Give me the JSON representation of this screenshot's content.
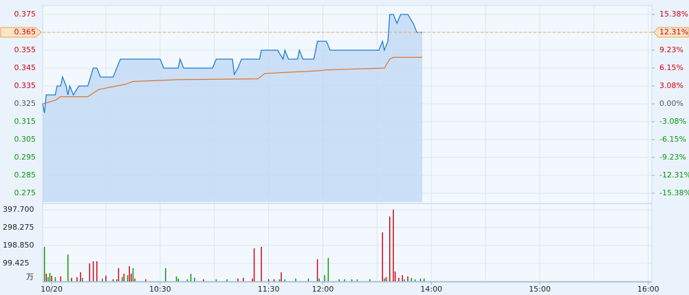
{
  "chart_data": {
    "type": "stock",
    "xlim": [
      -5,
      332
    ],
    "xticks": [
      {
        "value": 0,
        "label": "10/20"
      },
      {
        "value": 60,
        "label": "10:30"
      },
      {
        "value": 120,
        "label": "11:30"
      },
      {
        "value": 150,
        "label": "12:00"
      },
      {
        "value": 210,
        "label": "14:00"
      },
      {
        "value": 270,
        "label": "15:00"
      },
      {
        "value": 330,
        "label": "16:00"
      }
    ],
    "xgrid": [
      30,
      60,
      90,
      120,
      150,
      180,
      210,
      240,
      270,
      300,
      330
    ],
    "ylim": [
      0.27,
      0.38
    ],
    "yticks": [
      0.375,
      0.365,
      0.355,
      0.345,
      0.335,
      0.325,
      0.315,
      0.305,
      0.295,
      0.285,
      0.275
    ],
    "y2lim": [
      -16.92,
      16.92
    ],
    "y2ticks": [
      {
        "value": 15.38,
        "label": "15.38%"
      },
      {
        "value": 12.31,
        "label": "12.31%"
      },
      {
        "value": 9.23,
        "label": "9.23%"
      },
      {
        "value": 6.15,
        "label": "6.15%"
      },
      {
        "value": 3.08,
        "label": "3.08%"
      },
      {
        "value": 0,
        "label": "0.00%"
      },
      {
        "value": -3.08,
        "label": "-3.08%"
      },
      {
        "value": -6.15,
        "label": "-6.15%"
      },
      {
        "value": -9.23,
        "label": "-9.23%"
      },
      {
        "value": -12.31,
        "label": "-12.31%"
      },
      {
        "value": -15.38,
        "label": "-15.38%"
      }
    ],
    "base": 0.325,
    "grid": true,
    "up_color": "#d3000f",
    "down_color": "#0b960b",
    "flat_color": "#555555",
    "price": {
      "color": "#1b7bd0",
      "fill": "#c4dbf4",
      "x": [
        -5,
        -4,
        -3,
        2,
        3,
        5,
        6,
        8,
        9,
        10,
        12,
        15,
        20,
        23,
        25,
        27,
        34,
        36,
        38,
        60,
        62,
        70,
        71,
        73,
        89,
        91,
        100,
        101,
        103,
        105,
        115,
        116,
        125,
        128,
        129,
        131,
        136,
        137,
        139,
        145,
        147,
        152,
        154,
        181,
        183,
        184,
        186,
        187,
        189,
        191,
        193,
        197,
        200,
        202,
        205
      ],
      "values": [
        0.325,
        0.32,
        0.33,
        0.33,
        0.335,
        0.335,
        0.34,
        0.335,
        0.33,
        0.335,
        0.33,
        0.335,
        0.335,
        0.345,
        0.345,
        0.34,
        0.34,
        0.345,
        0.35,
        0.35,
        0.345,
        0.345,
        0.35,
        0.345,
        0.345,
        0.35,
        0.35,
        0.3415,
        0.345,
        0.35,
        0.35,
        0.355,
        0.355,
        0.35,
        0.355,
        0.35,
        0.35,
        0.355,
        0.35,
        0.35,
        0.36,
        0.36,
        0.355,
        0.355,
        0.36,
        0.355,
        0.36,
        0.375,
        0.375,
        0.37,
        0.375,
        0.375,
        0.37,
        0.365,
        0.365
      ]
    },
    "average": {
      "color": "#e0722a",
      "x": [
        -5,
        2,
        5,
        20,
        26,
        41,
        45,
        69,
        114,
        118,
        148,
        152,
        184,
        187,
        189,
        205
      ],
      "values": [
        0.325,
        0.327,
        0.329,
        0.329,
        0.333,
        0.336,
        0.3375,
        0.3385,
        0.339,
        0.342,
        0.3435,
        0.344,
        0.345,
        0.35,
        0.351,
        0.351
      ]
    },
    "current": {
      "value": 0.365,
      "pct": {
        "value": 12.31,
        "label": "12.31%"
      }
    },
    "volume": {
      "ylim": [
        0,
        424.5
      ],
      "yticks": [
        {
          "value": 397.7,
          "label": "397.700"
        },
        298.275,
        {
          "value": 198.85,
          "label": "198.850"
        },
        99.425
      ],
      "unit": "万",
      "x": [
        -4,
        -3,
        -2,
        -1,
        0,
        2,
        5,
        9,
        11,
        14,
        16,
        17,
        21,
        23,
        25,
        28,
        30,
        34,
        36,
        37,
        39,
        40,
        42,
        43,
        44,
        45,
        46,
        52,
        63,
        69,
        70,
        75,
        77,
        79,
        84,
        91,
        97,
        103,
        106,
        111,
        112,
        116,
        120,
        123,
        126,
        127,
        129,
        135,
        142,
        147,
        148,
        151,
        153,
        159,
        162,
        166,
        169,
        176,
        183,
        184,
        185,
        187,
        189,
        190,
        192,
        194,
        195,
        197,
        199,
        201,
        204,
        206
      ],
      "values": [
        191,
        42,
        23,
        46,
        31,
        23,
        27,
        149,
        19,
        23,
        50,
        19,
        99,
        111,
        111,
        15,
        31,
        11,
        11,
        73,
        23,
        42,
        34,
        84,
        42,
        73,
        15,
        11,
        73,
        27,
        15,
        11,
        42,
        19,
        11,
        11,
        11,
        15,
        19,
        15,
        183,
        191,
        11,
        11,
        11,
        50,
        11,
        15,
        15,
        122,
        15,
        34,
        130,
        11,
        11,
        11,
        11,
        11,
        272,
        15,
        23,
        360,
        398,
        54,
        19,
        34,
        11,
        27,
        19,
        11,
        15,
        15
      ],
      "colors": [
        "#0b960b",
        "#d3000f",
        "#0b960b",
        "#0b960b",
        "#d3000f",
        "#0b960b",
        "#d3000f",
        "#0b960b",
        "#d3000f",
        "#d3000f",
        "#d3000f",
        "#0b960b",
        "#d3000f",
        "#d3000f",
        "#d3000f",
        "#0b960b",
        "#d3000f",
        "#d3000f",
        "#0b960b",
        "#d3000f",
        "#0b960b",
        "#d3000f",
        "#0b960b",
        "#d3000f",
        "#d3000f",
        "#0b960b",
        "#d3000f",
        "#d3000f",
        "#0b960b",
        "#0b960b",
        "#0b960b",
        "#0b960b",
        "#0b960b",
        "#0b960b",
        "#d3000f",
        "#0b960b",
        "#0b960b",
        "#d3000f",
        "#d3000f",
        "#d3000f",
        "#d3000f",
        "#d3000f",
        "#d3000f",
        "#d3000f",
        "#0b960b",
        "#d3000f",
        "#0b960b",
        "#0b960b",
        "#0b960b",
        "#d3000f",
        "#0b960b",
        "#0b960b",
        "#0b960b",
        "#0b960b",
        "#0b960b",
        "#0b960b",
        "#0b960b",
        "#0b960b",
        "#d3000f",
        "#0b960b",
        "#d3000f",
        "#d3000f",
        "#d3000f",
        "#d3000f",
        "#d3000f",
        "#d3000f",
        "#0b960b",
        "#d3000f",
        "#0b960b",
        "#0b960b",
        "#0b960b",
        "#0b960b"
      ]
    }
  }
}
